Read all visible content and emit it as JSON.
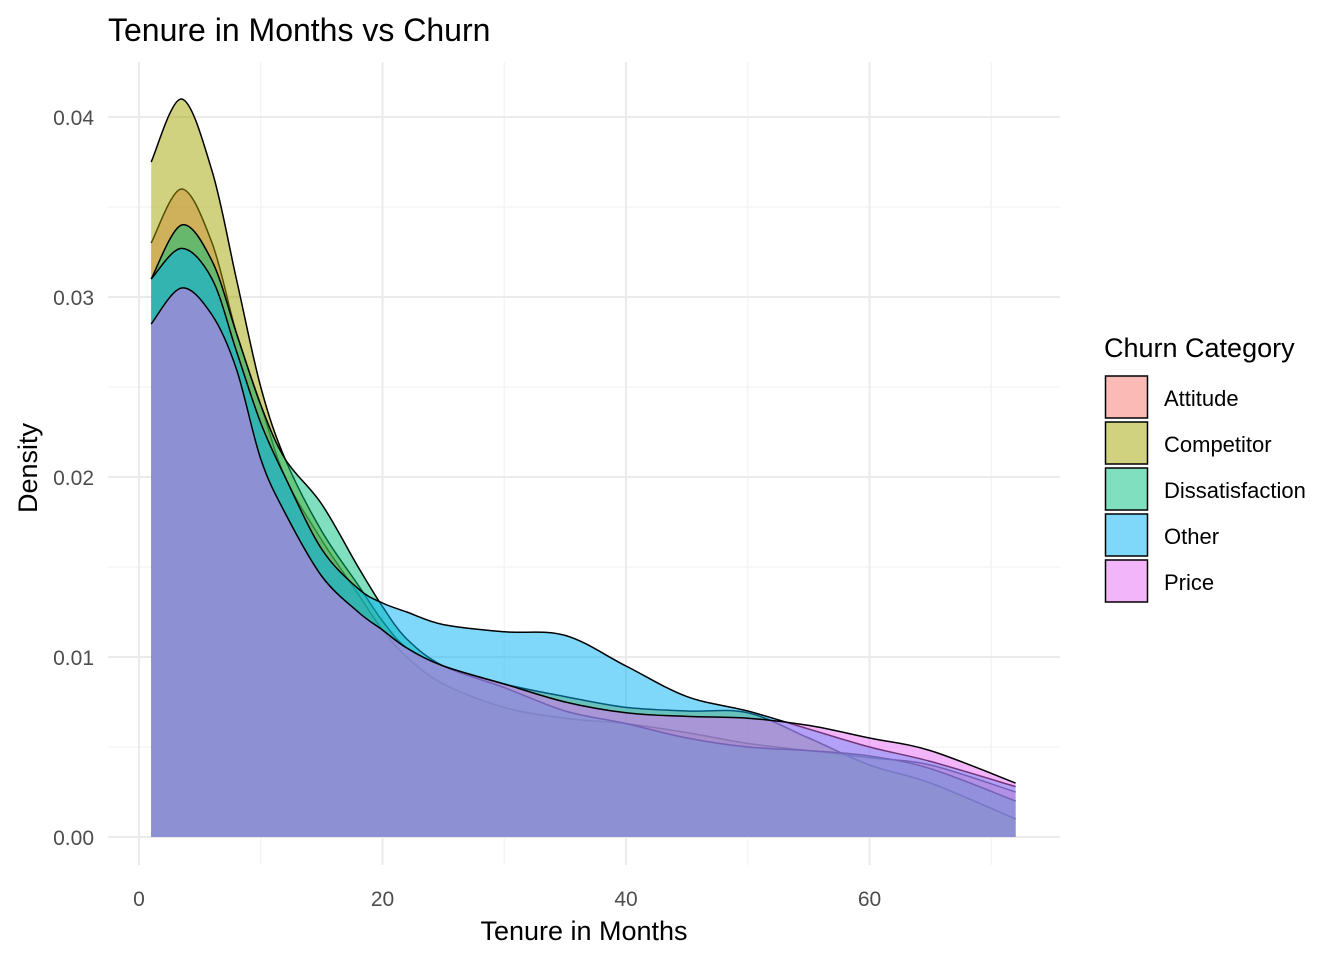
{
  "chart_data": {
    "type": "area",
    "title": "Tenure in Months vs Churn",
    "xlabel": "Tenure in Months",
    "ylabel": "Density",
    "xlim": [
      -1,
      76
    ],
    "ylim": [
      -0.0015,
      0.0435
    ],
    "xticks": [
      0,
      20,
      40,
      60
    ],
    "xtick_labels": [
      "0",
      "20",
      "40",
      "60"
    ],
    "yticks": [
      0,
      0.01,
      0.02,
      0.03,
      0.04
    ],
    "ytick_labels": [
      "0.00",
      "0.01",
      "0.02",
      "0.03",
      "0.04"
    ],
    "grid": true,
    "legend": {
      "title": "Churn Category",
      "placement": "right"
    },
    "x": [
      1,
      3.5,
      6,
      8,
      10,
      12,
      15,
      18,
      20,
      22,
      25,
      30,
      35,
      40,
      45,
      50,
      55,
      60,
      65,
      72
    ],
    "series": [
      {
        "name": "Attitude",
        "color": "#F8766D",
        "values": [
          0.033,
          0.036,
          0.033,
          0.028,
          0.024,
          0.02,
          0.0165,
          0.0135,
          0.0115,
          0.01,
          0.0085,
          0.0072,
          0.0066,
          0.0063,
          0.0058,
          0.0052,
          0.0048,
          0.0044,
          0.004,
          0.0025
        ]
      },
      {
        "name": "Competitor",
        "color": "#A3A500",
        "values": [
          0.0375,
          0.041,
          0.037,
          0.031,
          0.025,
          0.021,
          0.017,
          0.014,
          0.012,
          0.0105,
          0.0095,
          0.0085,
          0.0078,
          0.0072,
          0.007,
          0.0069,
          0.0055,
          0.004,
          0.003,
          0.001
        ]
      },
      {
        "name": "Dissatisfaction",
        "color": "#00BF7D",
        "values": [
          0.031,
          0.034,
          0.032,
          0.028,
          0.024,
          0.021,
          0.0185,
          0.015,
          0.0128,
          0.011,
          0.0095,
          0.0083,
          0.007,
          0.0063,
          0.0055,
          0.005,
          0.0048,
          0.0045,
          0.0038,
          0.002
        ]
      },
      {
        "name": "Other",
        "color": "#00B0F6",
        "values": [
          0.031,
          0.0327,
          0.031,
          0.027,
          0.023,
          0.02,
          0.016,
          0.0138,
          0.013,
          0.0125,
          0.0118,
          0.0114,
          0.0112,
          0.0095,
          0.0078,
          0.007,
          0.006,
          0.005,
          0.0042,
          0.0028
        ]
      },
      {
        "name": "Price",
        "color": "#E76BF3",
        "values": [
          0.0285,
          0.0305,
          0.029,
          0.026,
          0.021,
          0.018,
          0.0145,
          0.0125,
          0.0115,
          0.0105,
          0.0095,
          0.0085,
          0.0075,
          0.0069,
          0.0067,
          0.0066,
          0.0062,
          0.0055,
          0.0048,
          0.003
        ]
      }
    ]
  }
}
